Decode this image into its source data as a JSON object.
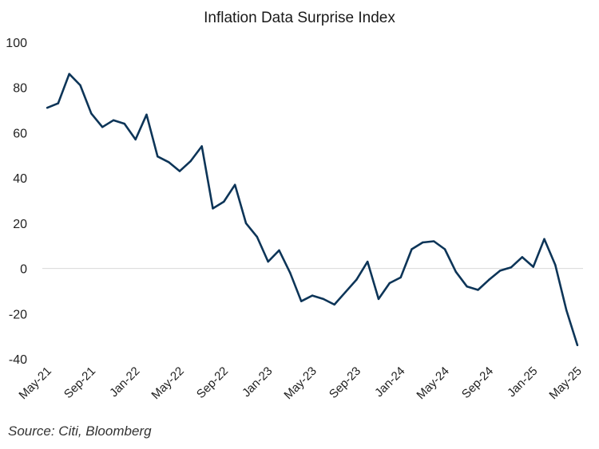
{
  "chart_data": {
    "type": "line",
    "title": "Inflation Data Surprise Index",
    "xlabel": "",
    "ylabel": "",
    "ylim": [
      -40,
      100
    ],
    "yticks": [
      100,
      80,
      60,
      40,
      20,
      0,
      -20,
      -40
    ],
    "xtick_labels": [
      "May-21",
      "Sep-21",
      "Jan-22",
      "May-22",
      "Sep-22",
      "Jan-23",
      "May-23",
      "Sep-23",
      "Jan-24",
      "May-24",
      "Sep-24",
      "Jan-25",
      "May-25"
    ],
    "grid": "zero-line only",
    "legend": "none",
    "line_color": "#0d3558",
    "series": [
      {
        "name": "Inflation Data Surprise Index",
        "x": [
          "May-21",
          "Jun-21",
          "Jul-21",
          "Aug-21",
          "Sep-21",
          "Oct-21",
          "Nov-21",
          "Dec-21",
          "Jan-22",
          "Feb-22",
          "Mar-22",
          "Apr-22",
          "May-22",
          "Jun-22",
          "Jul-22",
          "Aug-22",
          "Sep-22",
          "Oct-22",
          "Nov-22",
          "Dec-22",
          "Jan-23",
          "Feb-23",
          "Mar-23",
          "Apr-23",
          "May-23",
          "Jun-23",
          "Jul-23",
          "Aug-23",
          "Sep-23",
          "Oct-23",
          "Nov-23",
          "Dec-23",
          "Jan-24",
          "Feb-24",
          "Mar-24",
          "Apr-24",
          "May-24",
          "Jun-24",
          "Jul-24",
          "Aug-24",
          "Sep-24",
          "Oct-24",
          "Nov-24",
          "Dec-24",
          "Jan-25",
          "Feb-25",
          "Mar-25",
          "Apr-25",
          "May-25"
        ],
        "values": [
          71,
          73,
          86,
          81,
          68.5,
          62.5,
          65.5,
          64,
          57,
          68,
          49.5,
          47,
          43,
          47.5,
          54,
          26.5,
          29.5,
          37,
          20,
          14,
          3,
          8,
          -2,
          -14.5,
          -12,
          -13.5,
          -16,
          -10.5,
          -5,
          3,
          -13.5,
          -6.5,
          -4,
          8.5,
          11.5,
          12,
          8.5,
          -1.5,
          -8,
          -9.5,
          -5,
          -1,
          0.5,
          5,
          0.7,
          13,
          1.5,
          -18.5,
          -34
        ]
      }
    ]
  },
  "footer": {
    "source": "Source: Citi, Bloomberg"
  }
}
